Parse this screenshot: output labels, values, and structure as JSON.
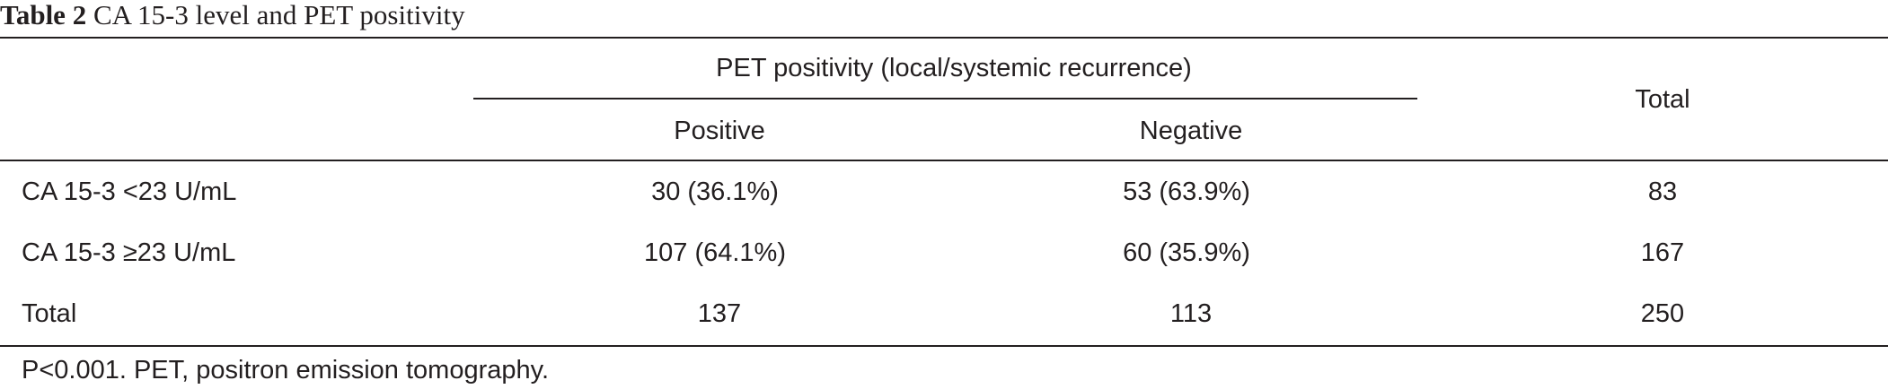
{
  "caption": {
    "label": "Table 2",
    "text": "CA 15-3 level and PET positivity"
  },
  "table": {
    "group_header": "PET positivity (local/systemic recurrence)",
    "columns": [
      "Positive",
      "Negative"
    ],
    "total_header": "Total",
    "rows": [
      {
        "label": "CA 15-3 <23 U/mL",
        "positive": "30 (36.1%)",
        "negative": "53 (63.9%)",
        "total": "83"
      },
      {
        "label": "CA 15-3 ≥23 U/mL",
        "positive": "107 (64.1%)",
        "negative": "60 (35.9%)",
        "total": "167"
      },
      {
        "label": "Total",
        "positive": "137",
        "negative": "113",
        "total": "250"
      }
    ]
  },
  "footnote": "P<0.001. PET, positron emission tomography."
}
